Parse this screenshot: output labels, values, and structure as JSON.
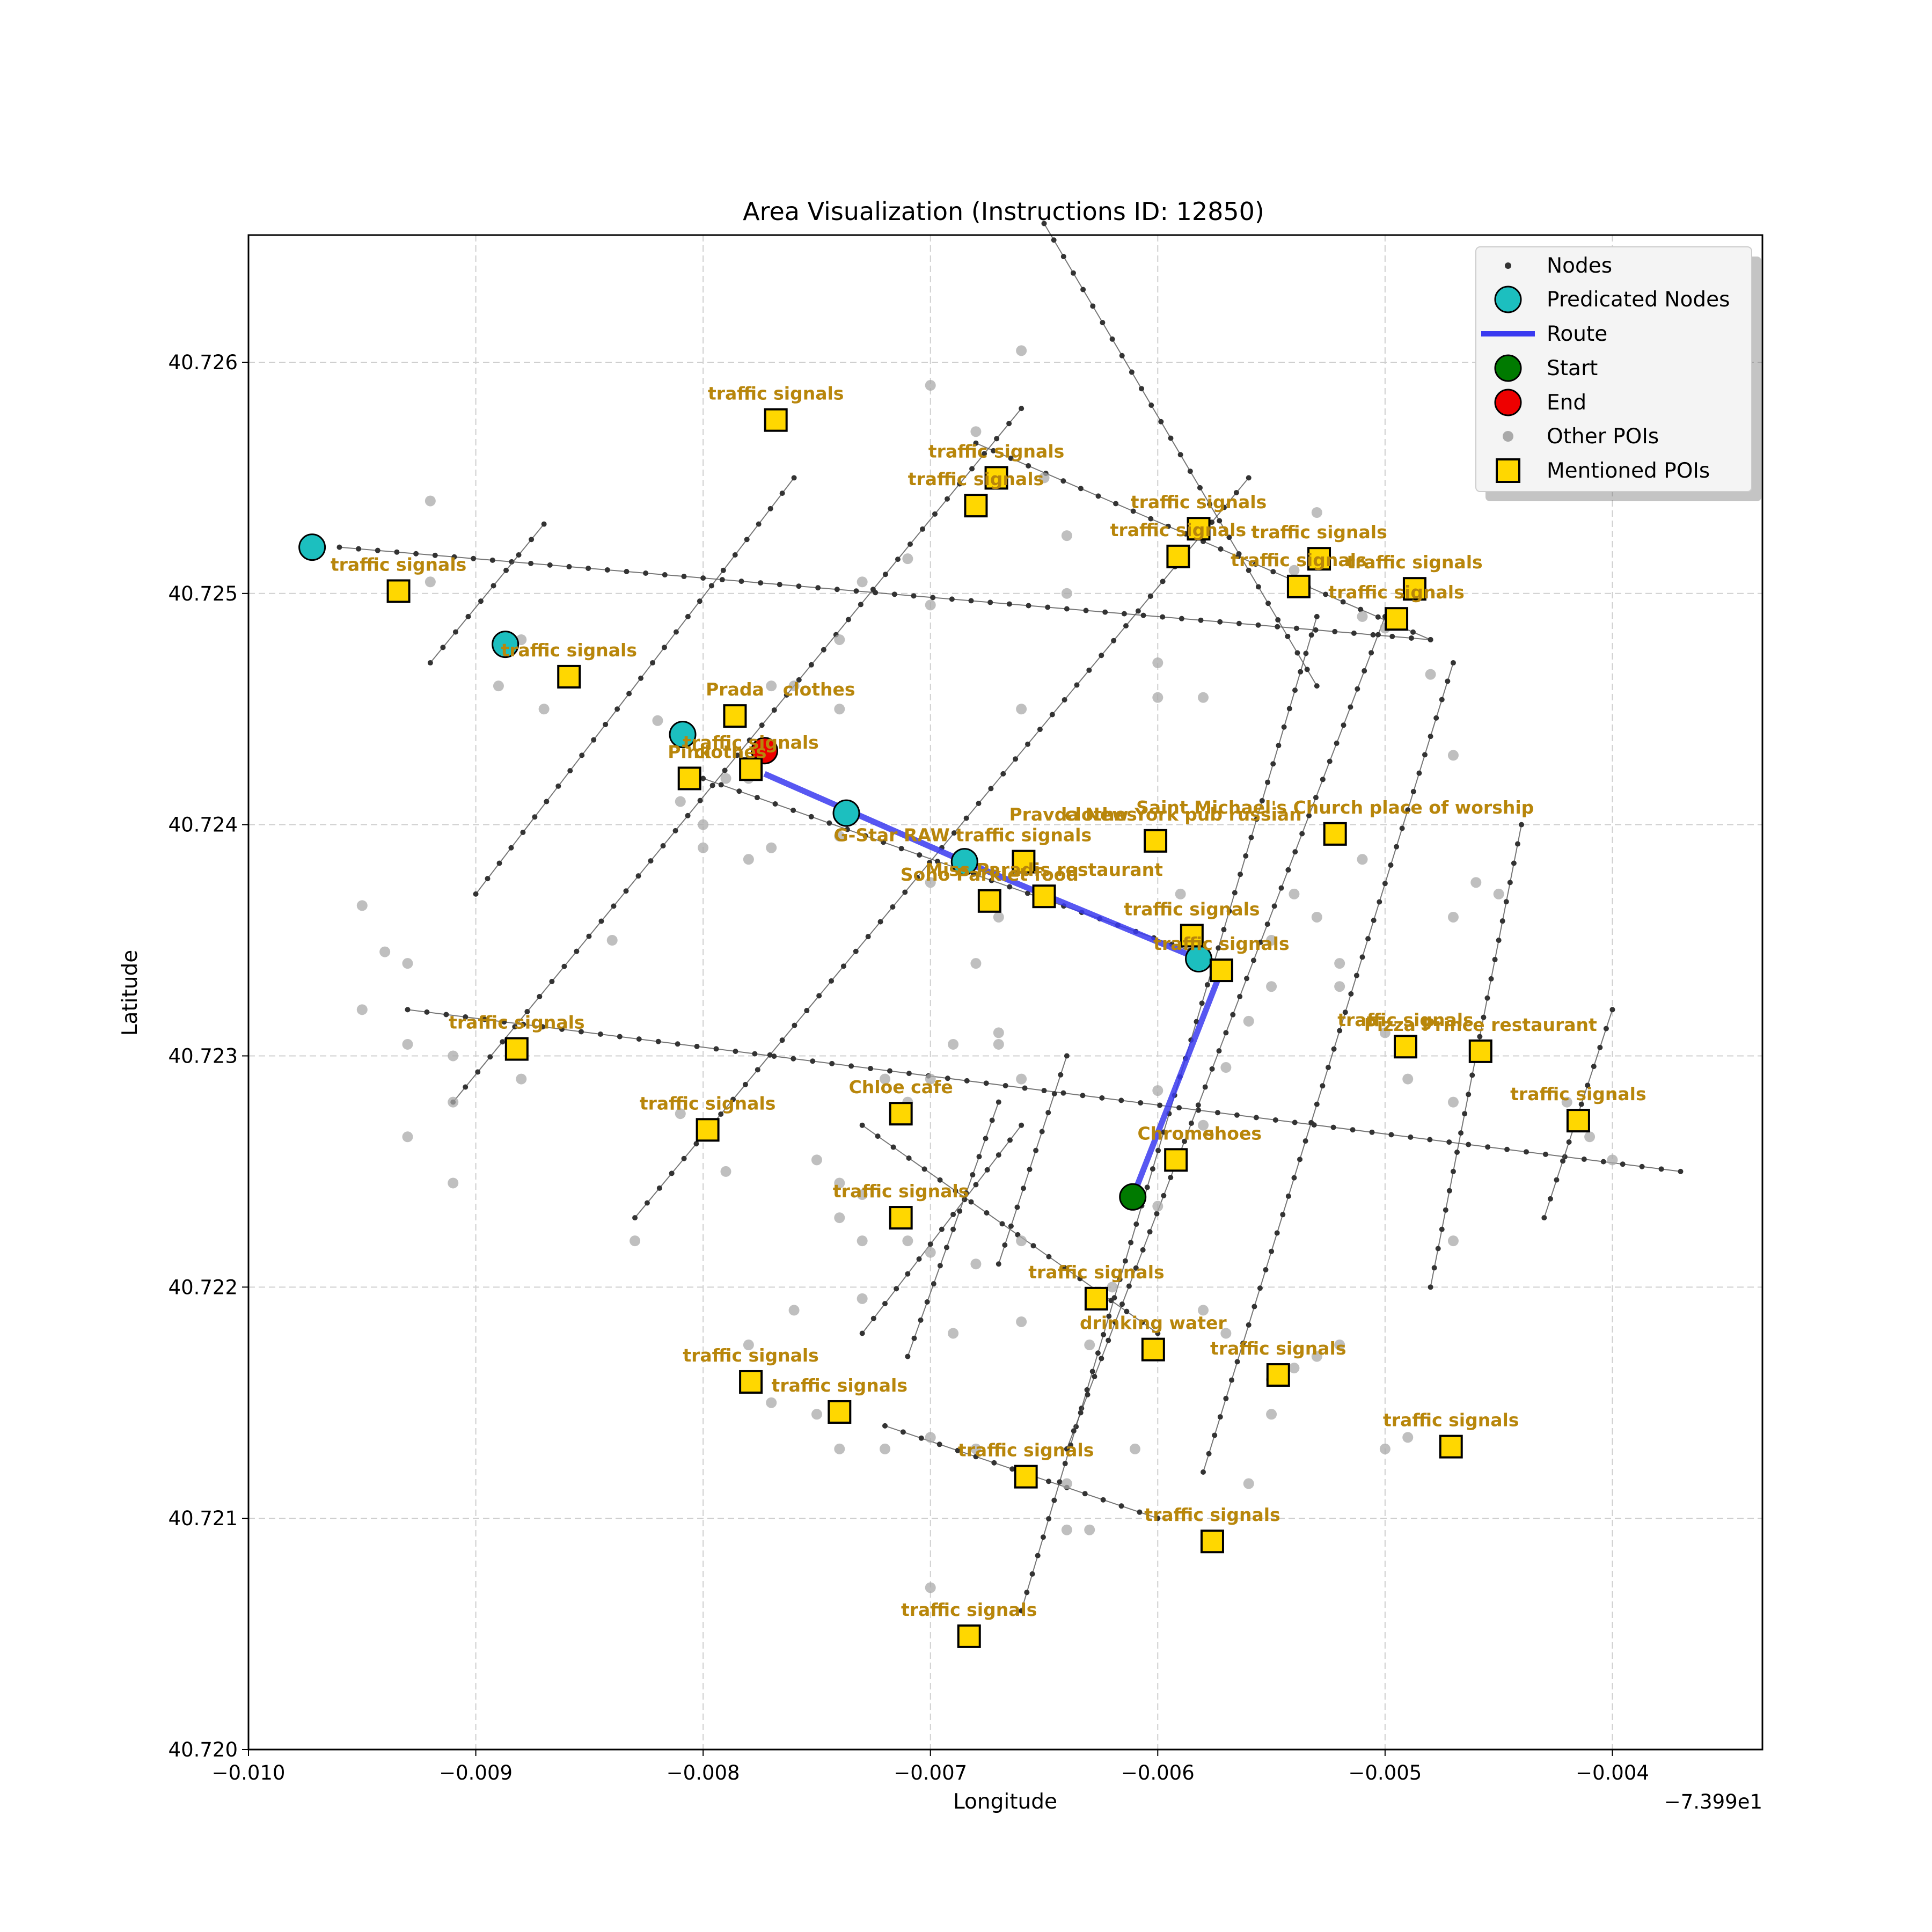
{
  "chart_data": {
    "type": "map-scatter",
    "title": "Area Visualization (Instructions ID: 12850)",
    "xlabel": "Longitude",
    "ylabel": "Latitude",
    "x_offset_label": "−7.399e1",
    "xlim": [
      -0.01,
      -0.00334
    ],
    "ylim": [
      40.72,
      40.72655
    ],
    "x_ticks": [
      {
        "value": -0.01,
        "label": "−0.010"
      },
      {
        "value": -0.009,
        "label": "−0.009"
      },
      {
        "value": -0.008,
        "label": "−0.008"
      },
      {
        "value": -0.007,
        "label": "−0.007"
      },
      {
        "value": -0.006,
        "label": "−0.006"
      },
      {
        "value": -0.005,
        "label": "−0.005"
      },
      {
        "value": -0.004,
        "label": "−0.004"
      }
    ],
    "y_ticks": [
      {
        "value": 40.72,
        "label": "40.720"
      },
      {
        "value": 40.721,
        "label": "40.721"
      },
      {
        "value": 40.722,
        "label": "40.722"
      },
      {
        "value": 40.723,
        "label": "40.723"
      },
      {
        "value": 40.724,
        "label": "40.724"
      },
      {
        "value": 40.725,
        "label": "40.725"
      },
      {
        "value": 40.726,
        "label": "40.726"
      }
    ],
    "grid": true,
    "legend": {
      "position": "top-right",
      "entries": [
        "Nodes",
        "Predicated Nodes",
        "Route",
        "Start",
        "End",
        "Other POIs",
        "Mentioned POIs"
      ]
    },
    "colors": {
      "nodes": "#333333",
      "predicated": "#1cbfbf",
      "route": "#3a3af0",
      "start": "#007a00",
      "end": "#ee0000",
      "other_poi": "#a9a9a9",
      "mentioned_fill": "#ffd700",
      "label": "#b8860b",
      "grid": "#cfcfcf"
    },
    "streets": [
      [
        [
          -0.0096,
          40.7252
        ],
        [
          -0.0048,
          40.7248
        ]
      ],
      [
        [
          -0.0093,
          40.7232
        ],
        [
          -0.0037,
          40.7225
        ]
      ],
      [
        [
          -0.008,
          40.7242
        ],
        [
          -0.0057,
          40.7234
        ]
      ],
      [
        [
          -0.0068,
          40.72565
        ],
        [
          -0.0048,
          40.7248
        ]
      ],
      [
        [
          -0.0065,
          40.7266
        ],
        [
          -0.0053,
          40.7246
        ]
      ],
      [
        [
          -0.0072,
          40.7214
        ],
        [
          -0.006,
          40.721
        ]
      ],
      [
        [
          -0.0073,
          40.7227
        ],
        [
          -0.006,
          40.7218
        ]
      ],
      [
        [
          -0.0092,
          40.7247
        ],
        [
          -0.0087,
          40.7253
        ]
      ],
      [
        [
          -0.009,
          40.7237
        ],
        [
          -0.0076,
          40.7255
        ]
      ],
      [
        [
          -0.0091,
          40.7228
        ],
        [
          -0.0066,
          40.7258
        ]
      ],
      [
        [
          -0.0083,
          40.7223
        ],
        [
          -0.0056,
          40.7255
        ]
      ],
      [
        [
          -0.0066,
          40.7206
        ],
        [
          -0.0053,
          40.7249
        ]
      ],
      [
        [
          -0.0064,
          40.7213
        ],
        [
          -0.005,
          40.7249
        ]
      ],
      [
        [
          -0.0058,
          40.7212
        ],
        [
          -0.0047,
          40.7247
        ]
      ],
      [
        [
          -0.0048,
          40.722
        ],
        [
          -0.0044,
          40.724
        ]
      ],
      [
        [
          -0.0043,
          40.7223
        ],
        [
          -0.004,
          40.7232
        ]
      ],
      [
        [
          -0.0073,
          40.7218
        ],
        [
          -0.0066,
          40.7227
        ]
      ],
      [
        [
          -0.0071,
          40.7217
        ],
        [
          -0.0067,
          40.7228
        ]
      ],
      [
        [
          -0.0067,
          40.7221
        ],
        [
          -0.0064,
          40.723
        ]
      ]
    ],
    "route": [
      [
        -0.00611,
        40.72239
      ],
      [
        -0.00572,
        40.72337
      ],
      [
        -0.00582,
        40.72342
      ],
      [
        -0.00685,
        40.72384
      ],
      [
        -0.00773,
        40.72422
      ]
    ],
    "predicated_nodes": [
      [
        -0.00972,
        40.7252
      ],
      [
        -0.00887,
        40.72478
      ],
      [
        -0.00809,
        40.72439
      ],
      [
        -0.00737,
        40.72405
      ],
      [
        -0.00685,
        40.72384
      ],
      [
        -0.00582,
        40.72342
      ]
    ],
    "start": [
      -0.00611,
      40.72239
    ],
    "end": [
      -0.00773,
      40.72432
    ],
    "other_pois": [
      [
        -0.0066,
        40.72605
      ],
      [
        -0.007,
        40.7259
      ],
      [
        -0.0068,
        40.7257
      ],
      [
        -0.0065,
        40.7255
      ],
      [
        -0.0064,
        40.72525
      ],
      [
        -0.0092,
        40.7254
      ],
      [
        -0.0092,
        40.72505
      ],
      [
        -0.0088,
        40.7248
      ],
      [
        -0.0089,
        40.7246
      ],
      [
        -0.0087,
        40.7245
      ],
      [
        -0.0076,
        40.7246
      ],
      [
        -0.0074,
        40.7248
      ],
      [
        -0.0073,
        40.72505
      ],
      [
        -0.0071,
        40.72515
      ],
      [
        -0.007,
        40.72495
      ],
      [
        -0.0074,
        40.7245
      ],
      [
        -0.008,
        40.724
      ],
      [
        -0.008,
        40.7239
      ],
      [
        -0.0078,
        40.72385
      ],
      [
        -0.0077,
        40.7239
      ],
      [
        -0.0074,
        40.72395
      ],
      [
        -0.007,
        40.72375
      ],
      [
        -0.0067,
        40.7236
      ],
      [
        -0.0064,
        40.725
      ],
      [
        -0.0066,
        40.7245
      ],
      [
        -0.006,
        40.7247
      ],
      [
        -0.006,
        40.72455
      ],
      [
        -0.0058,
        40.72455
      ],
      [
        -0.0054,
        40.7251
      ],
      [
        -0.0053,
        40.72535
      ],
      [
        -0.005,
        40.72485
      ],
      [
        -0.0051,
        40.7249
      ],
      [
        -0.0048,
        40.72465
      ],
      [
        -0.0047,
        40.7243
      ],
      [
        -0.0051,
        40.72385
      ],
      [
        -0.0054,
        40.7237
      ],
      [
        -0.0059,
        40.7237
      ],
      [
        -0.0066,
        40.72385
      ],
      [
        -0.0055,
        40.7235
      ],
      [
        -0.0053,
        40.7236
      ],
      [
        -0.0052,
        40.7234
      ],
      [
        -0.0052,
        40.7233
      ],
      [
        -0.005,
        40.7231
      ],
      [
        -0.0046,
        40.72375
      ],
      [
        -0.0045,
        40.7237
      ],
      [
        -0.0047,
        40.7228
      ],
      [
        -0.0049,
        40.7229
      ],
      [
        -0.0056,
        40.72315
      ],
      [
        -0.0057,
        40.72295
      ],
      [
        -0.006,
        40.72285
      ],
      [
        -0.0058,
        40.7227
      ],
      [
        -0.006,
        40.72235
      ],
      [
        -0.007,
        40.7229
      ],
      [
        -0.0071,
        40.7228
      ],
      [
        -0.0069,
        40.72305
      ],
      [
        -0.0072,
        40.7229
      ],
      [
        -0.0067,
        40.72305
      ],
      [
        -0.0084,
        40.7235
      ],
      [
        -0.0095,
        40.72365
      ],
      [
        -0.0094,
        40.72345
      ],
      [
        -0.0093,
        40.7234
      ],
      [
        -0.0095,
        40.7232
      ],
      [
        -0.0093,
        40.72305
      ],
      [
        -0.0091,
        40.723
      ],
      [
        -0.0091,
        40.7228
      ],
      [
        -0.0093,
        40.72265
      ],
      [
        -0.0091,
        40.72245
      ],
      [
        -0.0088,
        40.7229
      ],
      [
        -0.0081,
        40.72275
      ],
      [
        -0.0079,
        40.7225
      ],
      [
        -0.0075,
        40.72255
      ],
      [
        -0.0074,
        40.72245
      ],
      [
        -0.0073,
        40.7224
      ],
      [
        -0.0074,
        40.7223
      ],
      [
        -0.0073,
        40.7222
      ],
      [
        -0.0071,
        40.7222
      ],
      [
        -0.007,
        40.72215
      ],
      [
        -0.0068,
        40.7221
      ],
      [
        -0.0066,
        40.7222
      ],
      [
        -0.0083,
        40.7222
      ],
      [
        -0.0076,
        40.7219
      ],
      [
        -0.0073,
        40.72195
      ],
      [
        -0.0069,
        40.7218
      ],
      [
        -0.0066,
        40.72185
      ],
      [
        -0.0063,
        40.72175
      ],
      [
        -0.0062,
        40.722
      ],
      [
        -0.0058,
        40.7219
      ],
      [
        -0.0057,
        40.7218
      ],
      [
        -0.0055,
        40.7216
      ],
      [
        -0.0054,
        40.72165
      ],
      [
        -0.0053,
        40.7217
      ],
      [
        -0.0052,
        40.72175
      ],
      [
        -0.005,
        40.7213
      ],
      [
        -0.0049,
        40.72135
      ],
      [
        -0.0047,
        40.7222
      ],
      [
        -0.0078,
        40.72175
      ],
      [
        -0.0077,
        40.7215
      ],
      [
        -0.0075,
        40.72145
      ],
      [
        -0.0074,
        40.7213
      ],
      [
        -0.0072,
        40.7213
      ],
      [
        -0.007,
        40.72135
      ],
      [
        -0.0068,
        40.7213
      ],
      [
        -0.0066,
        40.7212
      ],
      [
        -0.0064,
        40.72115
      ],
      [
        -0.0063,
        40.72095
      ],
      [
        -0.0061,
        40.7213
      ],
      [
        -0.007,
        40.7207
      ],
      [
        -0.0064,
        40.72095
      ],
      [
        -0.0055,
        40.72145
      ],
      [
        -0.0056,
        40.72115
      ],
      [
        -0.004,
        40.72255
      ],
      [
        -0.0041,
        40.72265
      ],
      [
        -0.0042,
        40.7228
      ],
      [
        -0.0047,
        40.7236
      ],
      [
        -0.0055,
        40.7233
      ],
      [
        -0.0067,
        40.7231
      ],
      [
        -0.0066,
        40.7229
      ],
      [
        -0.0068,
        40.7234
      ],
      [
        -0.0079,
        40.7242
      ],
      [
        -0.0082,
        40.72445
      ],
      [
        -0.0081,
        40.7241
      ],
      [
        -0.0077,
        40.7246
      ],
      [
        -0.0078,
        40.7242
      ]
    ],
    "mentioned_pois": [
      {
        "x": -0.00768,
        "y": 40.72575,
        "label": "traffic signals"
      },
      {
        "x": -0.00671,
        "y": 40.7255,
        "label": "traffic signals"
      },
      {
        "x": -0.0068,
        "y": 40.72538,
        "label": "traffic signals"
      },
      {
        "x": -0.00582,
        "y": 40.72528,
        "label": "traffic signals"
      },
      {
        "x": -0.00591,
        "y": 40.72516,
        "label": "traffic signals"
      },
      {
        "x": -0.00529,
        "y": 40.72515,
        "label": "traffic signals"
      },
      {
        "x": -0.00538,
        "y": 40.72503,
        "label": "traffic signals"
      },
      {
        "x": -0.00487,
        "y": 40.72502,
        "label": "traffic signals"
      },
      {
        "x": -0.00495,
        "y": 40.72489,
        "label": "traffic signals"
      },
      {
        "x": -0.00934,
        "y": 40.72501,
        "label": "traffic signals"
      },
      {
        "x": -0.00859,
        "y": 40.72464,
        "label": "traffic signals"
      },
      {
        "x": -0.00786,
        "y": 40.72447,
        "label": "Prada"
      },
      {
        "x": -0.00806,
        "y": 40.7242,
        "label": "Pink"
      },
      {
        "x": -0.00779,
        "y": 40.72424,
        "label": "traffic signals"
      },
      {
        "x": -0.00601,
        "y": 40.72393,
        "label": "Pravda New York pub russian"
      },
      {
        "x": -0.00522,
        "y": 40.72396,
        "label": "Saint Michael's Church place of worship"
      },
      {
        "x": -0.00659,
        "y": 40.72384,
        "label": "traffic signals"
      },
      {
        "x": -0.00674,
        "y": 40.72367,
        "label": "Soho Parklet food"
      },
      {
        "x": -0.0065,
        "y": 40.72369,
        "label": "Miss Paradis restaurant"
      },
      {
        "x": -0.00585,
        "y": 40.72352,
        "label": "traffic signals"
      },
      {
        "x": -0.00572,
        "y": 40.72337,
        "label": "traffic signals"
      },
      {
        "x": -0.00882,
        "y": 40.72303,
        "label": "traffic signals"
      },
      {
        "x": -0.00491,
        "y": 40.72304,
        "label": "traffic signals"
      },
      {
        "x": -0.00458,
        "y": 40.72302,
        "label": "Pizza Prince restaurant"
      },
      {
        "x": -0.00415,
        "y": 40.72272,
        "label": "traffic signals"
      },
      {
        "x": -0.00798,
        "y": 40.72268,
        "label": "traffic signals"
      },
      {
        "x": -0.00713,
        "y": 40.72275,
        "label": "Chloe cafe"
      },
      {
        "x": -0.00592,
        "y": 40.72255,
        "label": "Chrome"
      },
      {
        "x": -0.00713,
        "y": 40.7223,
        "label": "traffic signals"
      },
      {
        "x": -0.00627,
        "y": 40.72195,
        "label": "traffic signals"
      },
      {
        "x": -0.00602,
        "y": 40.72173,
        "label": "drinking water"
      },
      {
        "x": -0.00547,
        "y": 40.72162,
        "label": "traffic signals"
      },
      {
        "x": -0.00779,
        "y": 40.72159,
        "label": "traffic signals"
      },
      {
        "x": -0.0074,
        "y": 40.72146,
        "label": "traffic signals"
      },
      {
        "x": -0.00471,
        "y": 40.72131,
        "label": "traffic signals"
      },
      {
        "x": -0.00658,
        "y": 40.72118,
        "label": "traffic signals"
      },
      {
        "x": -0.00576,
        "y": 40.7209,
        "label": "traffic signals"
      },
      {
        "x": -0.00683,
        "y": 40.72049,
        "label": "traffic signals"
      }
    ],
    "annotations": [
      {
        "x": -0.00786,
        "y": 40.72447,
        "label": "clothes",
        "dx": 0.00037
      },
      {
        "x": -0.00806,
        "y": 40.7242,
        "label": "clothes",
        "dx": 0.00018
      },
      {
        "x": -0.00659,
        "y": 40.72384,
        "label": "G-Star RAW",
        "dx": -0.00058
      },
      {
        "x": -0.00601,
        "y": 40.72393,
        "label": "clothes",
        "dx": -0.00024
      },
      {
        "x": -0.00592,
        "y": 40.72255,
        "label": "shoes",
        "dx": 0.00025
      }
    ]
  }
}
